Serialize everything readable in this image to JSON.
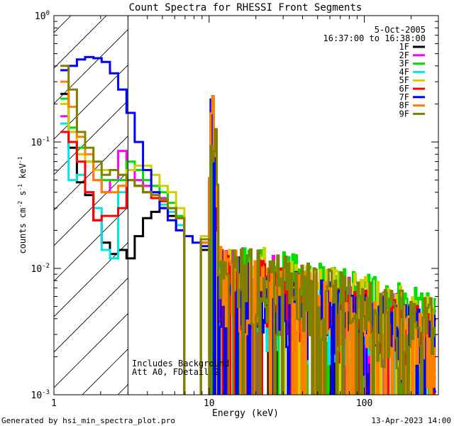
{
  "chart_data": {
    "type": "line",
    "title": "Count Spectra for RHESSI Front Segments",
    "xlabel": "Energy (keV)",
    "ylabel_parts": {
      "base": "counts cm",
      "exp1": "-2",
      "mid1": " s",
      "exp2": "-1",
      "mid2": " keV",
      "exp3": "-1"
    },
    "x_scale": "log",
    "y_scale": "log",
    "xlim": [
      1,
      300
    ],
    "ylim": [
      0.001,
      1
    ],
    "x_tick_labels": [
      {
        "value": 1,
        "label": "1"
      },
      {
        "value": 10,
        "label": "10"
      },
      {
        "value": 100,
        "label": "100"
      }
    ],
    "y_tick_labels": [
      {
        "exp": -3,
        "base": "10",
        "sup": "-3"
      },
      {
        "exp": -2,
        "base": "10",
        "sup": "-2"
      },
      {
        "exp": -1,
        "base": "10",
        "sup": "-1"
      },
      {
        "exp": 0,
        "base": "10",
        "sup": "0"
      }
    ],
    "hatched_region_upper_kev": 3,
    "date": "5-Oct-2005",
    "time_range": "16:37:00 to 16:38:00",
    "annotations": [
      "Includes Background",
      "Att A0, FDetail 2"
    ],
    "series": [
      {
        "name": "1F",
        "color": "#000000",
        "low": [
          0.24,
          0.09,
          0.048,
          0.038,
          0.024,
          0.016,
          0.013,
          0.014,
          0.012,
          0.018,
          0.025,
          0.028,
          0.03,
          0.026,
          0.02,
          0.016,
          0.015,
          0.014
        ],
        "tail": 0.003,
        "seed": 11
      },
      {
        "name": "2F",
        "color": "#ff00ff",
        "low": [
          0.16,
          0.12,
          0.08,
          0.07,
          0.05,
          0.04,
          0.05,
          0.085,
          0.06,
          0.05,
          0.045,
          0.04,
          0.036,
          0.03,
          0.025,
          0.02,
          0.017,
          0.016
        ],
        "tail": 0.0038,
        "seed": 23
      },
      {
        "name": "3F",
        "color": "#00e000",
        "low": [
          0.22,
          0.13,
          0.09,
          0.07,
          0.06,
          0.05,
          0.05,
          0.05,
          0.07,
          0.06,
          0.05,
          0.045,
          0.04,
          0.033,
          0.026,
          0.02,
          0.017,
          0.016
        ],
        "tail": 0.0045,
        "seed": 37
      },
      {
        "name": "4F",
        "color": "#00e5e5",
        "low": [
          0.14,
          0.05,
          0.055,
          0.04,
          0.03,
          0.014,
          0.012,
          0.04,
          0.05,
          0.045,
          0.04,
          0.036,
          0.032,
          0.028,
          0.022,
          0.018,
          0.016,
          0.015
        ],
        "tail": 0.0028,
        "seed": 41
      },
      {
        "name": "5F",
        "color": "#d0d000",
        "low": [
          0.2,
          0.12,
          0.08,
          0.07,
          0.06,
          0.06,
          0.06,
          0.055,
          0.06,
          0.065,
          0.065,
          0.055,
          0.045,
          0.04,
          0.03,
          0.025,
          0.02,
          0.018
        ],
        "tail": 0.0042,
        "seed": 53
      },
      {
        "name": "6F",
        "color": "#ff0000",
        "low": [
          0.12,
          0.1,
          0.07,
          0.04,
          0.024,
          0.026,
          0.026,
          0.03,
          0.05,
          0.045,
          0.04,
          0.036,
          0.034,
          0.03,
          0.025,
          0.02,
          0.017,
          0.016
        ],
        "tail": 0.0033,
        "seed": 67
      },
      {
        "name": "7F",
        "color": "#0000ff",
        "low": [
          0.37,
          0.4,
          0.45,
          0.47,
          0.46,
          0.43,
          0.35,
          0.26,
          0.17,
          0.1,
          0.06,
          0.04,
          0.03,
          0.024,
          0.02,
          0.018,
          0.016,
          0.015
        ],
        "tail": 0.0032,
        "seed": 79
      },
      {
        "name": "8F",
        "color": "#ff8000",
        "low": [
          0.3,
          0.19,
          0.11,
          0.08,
          0.05,
          0.04,
          0.04,
          0.045,
          0.05,
          0.045,
          0.04,
          0.038,
          0.035,
          0.03,
          0.025,
          0.02,
          0.018,
          0.016
        ],
        "tail": 0.0035,
        "seed": 83
      },
      {
        "name": "9F",
        "color": "#808000",
        "low": [
          0.4,
          0.26,
          0.12,
          0.09,
          0.07,
          0.055,
          0.06,
          0.055,
          0.05,
          0.045,
          0.04,
          0.038,
          0.035,
          0.03,
          0.025,
          0.02,
          0.018,
          0.017
        ],
        "tail": 0.004,
        "seed": 97
      }
    ]
  },
  "footer": {
    "generated_by": "Generated by hsi_min_spectra_plot.pro",
    "timestamp": "13-Apr-2023 14:00"
  }
}
